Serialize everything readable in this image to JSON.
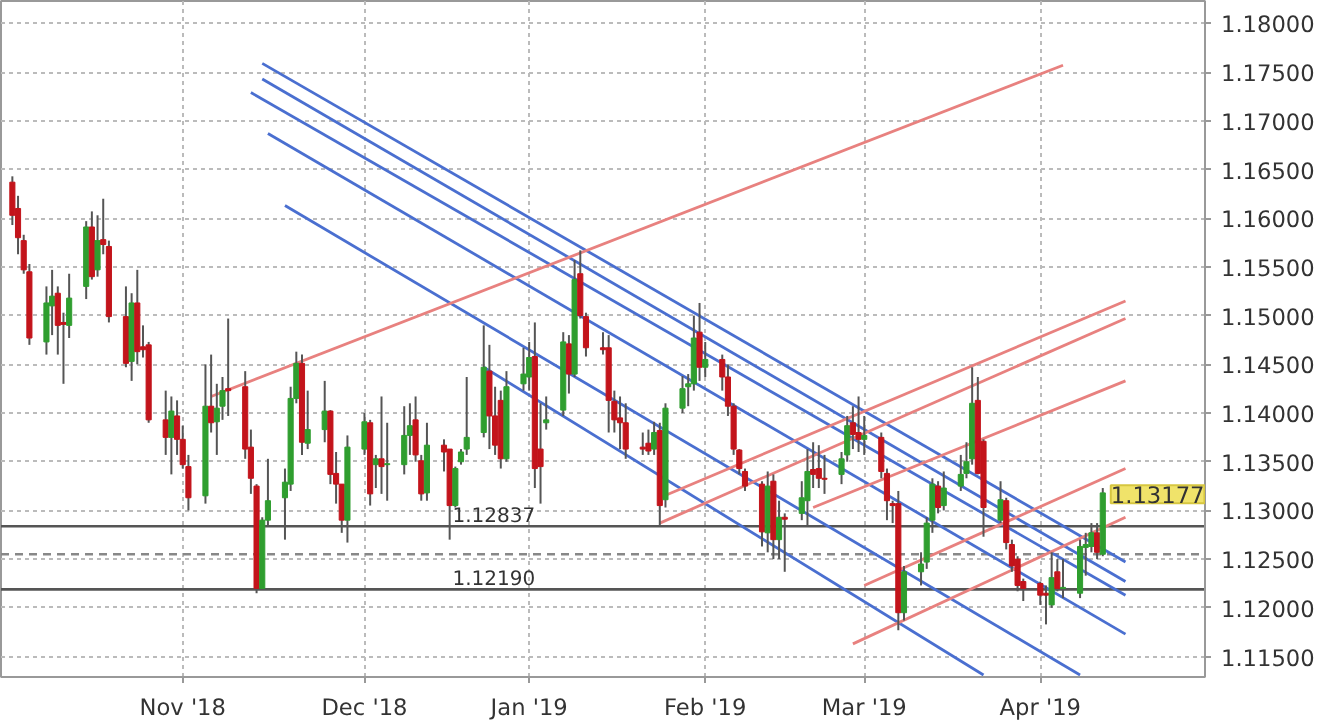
{
  "chart_data": {
    "type": "candlestick",
    "x": [
      "2018-10-02",
      "2018-10-03",
      "2018-10-04",
      "2018-10-05",
      "2018-10-08",
      "2018-10-09",
      "2018-10-10",
      "2018-10-11",
      "2018-10-12",
      "2018-10-15",
      "2018-10-16",
      "2018-10-17",
      "2018-10-18",
      "2018-10-19",
      "2018-10-22",
      "2018-10-23",
      "2018-10-24",
      "2018-10-25",
      "2018-10-26",
      "2018-10-29",
      "2018-10-30",
      "2018-10-31",
      "2018-11-01",
      "2018-11-02",
      "2018-11-05",
      "2018-11-06",
      "2018-11-07",
      "2018-11-08",
      "2018-11-09",
      "2018-11-12",
      "2018-11-13",
      "2018-11-14",
      "2018-11-15",
      "2018-11-16",
      "2018-11-19",
      "2018-11-20",
      "2018-11-21",
      "2018-11-22",
      "2018-11-23",
      "2018-11-26",
      "2018-11-27",
      "2018-11-28",
      "2018-11-29",
      "2018-11-30",
      "2018-12-03",
      "2018-12-04",
      "2018-12-05",
      "2018-12-06",
      "2018-12-07",
      "2018-12-10",
      "2018-12-11",
      "2018-12-12",
      "2018-12-13",
      "2018-12-14",
      "2018-12-17",
      "2018-12-18",
      "2018-12-19",
      "2018-12-20",
      "2018-12-21",
      "2018-12-24",
      "2018-12-25",
      "2018-12-26",
      "2018-12-27",
      "2018-12-28",
      "2018-12-31",
      "2019-01-01",
      "2019-01-02",
      "2019-01-03",
      "2019-01-04",
      "2019-01-07",
      "2019-01-08",
      "2019-01-09",
      "2019-01-10",
      "2019-01-11",
      "2019-01-14",
      "2019-01-15",
      "2019-01-16",
      "2019-01-17",
      "2019-01-18",
      "2019-01-21",
      "2019-01-22",
      "2019-01-23",
      "2019-01-24",
      "2019-01-25",
      "2019-01-28",
      "2019-01-29",
      "2019-01-30",
      "2019-01-31",
      "2019-02-01",
      "2019-02-04",
      "2019-02-05",
      "2019-02-06",
      "2019-02-07",
      "2019-02-08",
      "2019-02-11",
      "2019-02-12",
      "2019-02-13",
      "2019-02-14",
      "2019-02-15",
      "2019-02-18",
      "2019-02-19",
      "2019-02-20",
      "2019-02-21",
      "2019-02-22",
      "2019-02-25",
      "2019-02-26",
      "2019-02-27",
      "2019-02-28",
      "2019-03-01",
      "2019-03-04",
      "2019-03-05",
      "2019-03-06",
      "2019-03-07",
      "2019-03-08",
      "2019-03-11",
      "2019-03-12",
      "2019-03-13",
      "2019-03-14",
      "2019-03-15",
      "2019-03-18",
      "2019-03-19",
      "2019-03-20",
      "2019-03-21",
      "2019-03-22",
      "2019-03-25",
      "2019-03-26",
      "2019-03-27",
      "2019-03-28",
      "2019-03-29",
      "2019-04-01",
      "2019-04-02",
      "2019-04-03",
      "2019-04-04",
      "2019-04-05",
      "2019-04-08",
      "2019-04-09",
      "2019-04-10",
      "2019-04-11",
      "2019-04-12"
    ],
    "ohlc": [
      [
        1.1637,
        1.1643,
        1.1593,
        1.1603
      ],
      [
        1.161,
        1.1623,
        1.1563,
        1.158
      ],
      [
        1.1577,
        1.1583,
        1.1543,
        1.1547
      ],
      [
        1.1545,
        1.1553,
        1.147,
        1.1477
      ],
      [
        1.1473,
        1.153,
        1.146,
        1.1513
      ],
      [
        1.151,
        1.1547,
        1.148,
        1.152
      ],
      [
        1.1523,
        1.153,
        1.146,
        1.149
      ],
      [
        1.1493,
        1.1503,
        1.143,
        1.1491
      ],
      [
        1.149,
        1.1543,
        1.1477,
        1.1518
      ],
      [
        1.153,
        1.1597,
        1.1517,
        1.1591
      ],
      [
        1.1591,
        1.1607,
        1.1537,
        1.154
      ],
      [
        1.1547,
        1.1603,
        1.154,
        1.1577
      ],
      [
        1.1578,
        1.162,
        1.1563,
        1.1573
      ],
      [
        1.1571,
        1.1577,
        1.1493,
        1.1499
      ],
      [
        1.1499,
        1.153,
        1.1447,
        1.1451
      ],
      [
        1.1453,
        1.1523,
        1.1433,
        1.1513
      ],
      [
        1.1513,
        1.1547,
        1.145,
        1.1463
      ],
      [
        1.1468,
        1.149,
        1.1457,
        1.1465
      ],
      [
        1.147,
        1.1473,
        1.139,
        1.1393
      ],
      [
        1.1393,
        1.1423,
        1.1357,
        1.1375
      ],
      [
        1.1375,
        1.1417,
        1.1337,
        1.1402
      ],
      [
        1.1397,
        1.1413,
        1.1357,
        1.1373
      ],
      [
        1.1373,
        1.1387,
        1.1343,
        1.1347
      ],
      [
        1.1345,
        1.1357,
        1.13,
        1.1313
      ],
      [
        1.1315,
        1.145,
        1.1307,
        1.1407
      ],
      [
        1.1407,
        1.146,
        1.138,
        1.139
      ],
      [
        1.1391,
        1.143,
        1.1357,
        1.1405
      ],
      [
        1.1407,
        1.1437,
        1.1393,
        1.1423
      ],
      [
        1.1425,
        1.1497,
        1.1397,
        1.1423
      ],
      [
        1.1427,
        1.1443,
        1.1353,
        1.1363
      ],
      [
        1.1365,
        1.1383,
        1.1317,
        1.1333
      ],
      [
        1.1325,
        1.1327,
        1.1215,
        1.122
      ],
      [
        1.122,
        1.1293,
        1.1219,
        1.129
      ],
      [
        1.129,
        1.1353,
        1.1283,
        1.131
      ],
      [
        1.1313,
        1.1343,
        1.127,
        1.1329
      ],
      [
        1.1327,
        1.1427,
        1.132,
        1.1415
      ],
      [
        1.1415,
        1.1463,
        1.141,
        1.1451
      ],
      [
        1.1451,
        1.146,
        1.1357,
        1.137
      ],
      [
        1.1369,
        1.1423,
        1.1363,
        1.1383
      ],
      [
        1.1383,
        1.1433,
        1.137,
        1.1402
      ],
      [
        1.1402,
        1.1403,
        1.1327,
        1.1337
      ],
      [
        1.1338,
        1.136,
        1.1307,
        1.1327
      ],
      [
        1.1327,
        1.1327,
        1.1277,
        1.129
      ],
      [
        1.129,
        1.1377,
        1.1267,
        1.1365
      ],
      [
        1.1363,
        1.14,
        1.1357,
        1.1391
      ],
      [
        1.139,
        1.1393,
        1.1305,
        1.1317
      ],
      [
        1.1347,
        1.1357,
        1.1323,
        1.1353
      ],
      [
        1.1353,
        1.1417,
        1.1317,
        1.1345
      ],
      [
        1.1347,
        1.139,
        1.131,
        1.1348
      ],
      [
        1.1347,
        1.1407,
        1.1337,
        1.1377
      ],
      [
        1.1377,
        1.141,
        1.1357,
        1.1387
      ],
      [
        1.1393,
        1.1417,
        1.135,
        1.1357
      ],
      [
        1.1351,
        1.1357,
        1.131,
        1.1317
      ],
      [
        1.1318,
        1.139,
        1.131,
        1.1367
      ],
      [
        1.1367,
        1.1373,
        1.134,
        1.136
      ],
      [
        1.1363,
        1.1363,
        1.127,
        1.1305
      ],
      [
        1.1305,
        1.1345,
        1.1303,
        1.1343
      ],
      [
        1.135,
        1.1363,
        1.1347,
        1.136
      ],
      [
        1.1363,
        1.1437,
        1.1357,
        1.1375
      ],
      [
        1.138,
        1.149,
        1.1375,
        1.1447
      ],
      [
        1.1443,
        1.147,
        1.1363,
        1.1397
      ],
      [
        1.1397,
        1.1427,
        1.1357,
        1.1367
      ],
      [
        1.1413,
        1.1423,
        1.1343,
        1.1353
      ],
      [
        1.1353,
        1.1443,
        1.135,
        1.1427
      ],
      [
        1.143,
        1.1467,
        1.1423,
        1.144
      ],
      [
        1.1437,
        1.1473,
        1.1423,
        1.1457
      ],
      [
        1.1458,
        1.1493,
        1.1323,
        1.1343
      ],
      [
        1.1363,
        1.141,
        1.1307,
        1.1345
      ],
      [
        1.139,
        1.1417,
        1.1383,
        1.1393
      ],
      [
        1.1403,
        1.1483,
        1.1397,
        1.1473
      ],
      [
        1.1471,
        1.148,
        1.142,
        1.144
      ],
      [
        1.144,
        1.1557,
        1.1437,
        1.1537
      ],
      [
        1.1543,
        1.1567,
        1.1497,
        1.15
      ],
      [
        1.1499,
        1.1503,
        1.1458,
        1.1467
      ],
      [
        1.1467,
        1.1483,
        1.146,
        1.1465
      ],
      [
        1.1467,
        1.148,
        1.138,
        1.1413
      ],
      [
        1.1412,
        1.1423,
        1.138,
        1.1393
      ],
      [
        1.1395,
        1.1417,
        1.1363,
        1.139
      ],
      [
        1.139,
        1.141,
        1.1353,
        1.1363
      ],
      [
        1.1365,
        1.138,
        1.1357,
        1.1363
      ],
      [
        1.1369,
        1.1383,
        1.1357,
        1.1361
      ],
      [
        1.1363,
        1.1391,
        1.1357,
        1.138
      ],
      [
        1.1382,
        1.139,
        1.1283,
        1.1305
      ],
      [
        1.1311,
        1.141,
        1.1303,
        1.1405
      ],
      [
        1.1405,
        1.1438,
        1.14,
        1.1425
      ],
      [
        1.1427,
        1.144,
        1.1407,
        1.143
      ],
      [
        1.143,
        1.15,
        1.1423,
        1.1477
      ],
      [
        1.1483,
        1.1513,
        1.1433,
        1.1447
      ],
      [
        1.1447,
        1.1473,
        1.1437,
        1.1455
      ],
      [
        1.1455,
        1.146,
        1.1423,
        1.1437
      ],
      [
        1.1437,
        1.145,
        1.1397,
        1.1407
      ],
      [
        1.1407,
        1.141,
        1.1357,
        1.1363
      ],
      [
        1.1362,
        1.1363,
        1.1337,
        1.1343
      ],
      [
        1.134,
        1.1343,
        1.132,
        1.1325
      ],
      [
        1.1327,
        1.133,
        1.1263,
        1.1278
      ],
      [
        1.1277,
        1.134,
        1.1257,
        1.1325
      ],
      [
        1.133,
        1.1337,
        1.125,
        1.127
      ],
      [
        1.127,
        1.131,
        1.125,
        1.1293
      ],
      [
        1.1293,
        1.1297,
        1.1237,
        1.1291
      ],
      [
        1.1297,
        1.133,
        1.129,
        1.1313
      ],
      [
        1.131,
        1.1363,
        1.1283,
        1.134
      ],
      [
        1.1342,
        1.137,
        1.1323,
        1.1337
      ],
      [
        1.1343,
        1.1367,
        1.1323,
        1.1333
      ],
      [
        1.1333,
        1.1357,
        1.1317,
        1.1332
      ],
      [
        1.1337,
        1.136,
        1.1327,
        1.1353
      ],
      [
        1.1357,
        1.1397,
        1.135,
        1.1387
      ],
      [
        1.139,
        1.1407,
        1.1363,
        1.1378
      ],
      [
        1.138,
        1.1417,
        1.136,
        1.1373
      ],
      [
        1.1373,
        1.1397,
        1.1357,
        1.1377
      ],
      [
        1.1375,
        1.138,
        1.1333,
        1.134
      ],
      [
        1.1338,
        1.1343,
        1.129,
        1.131
      ],
      [
        1.1307,
        1.131,
        1.1287,
        1.1305
      ],
      [
        1.1307,
        1.132,
        1.1177,
        1.1195
      ],
      [
        1.1195,
        1.1243,
        1.1187,
        1.1237
      ],
      [
        1.1237,
        1.1257,
        1.1223,
        1.1245
      ],
      [
        1.1247,
        1.1293,
        1.124,
        1.1287
      ],
      [
        1.129,
        1.1333,
        1.1277,
        1.1327
      ],
      [
        1.1325,
        1.133,
        1.1297,
        1.1303
      ],
      [
        1.1305,
        1.134,
        1.13,
        1.1323
      ],
      [
        1.1325,
        1.1357,
        1.132,
        1.1337
      ],
      [
        1.1338,
        1.137,
        1.1333,
        1.135
      ],
      [
        1.1353,
        1.1447,
        1.1347,
        1.141
      ],
      [
        1.1413,
        1.1437,
        1.1337,
        1.1338
      ],
      [
        1.1371,
        1.1373,
        1.1273,
        1.1303
      ],
      [
        1.129,
        1.133,
        1.1287,
        1.1311
      ],
      [
        1.131,
        1.1313,
        1.126,
        1.1267
      ],
      [
        1.1265,
        1.127,
        1.1237,
        1.1243
      ],
      [
        1.125,
        1.1253,
        1.1217,
        1.1223
      ],
      [
        1.1227,
        1.123,
        1.1207,
        1.122
      ],
      [
        1.1225,
        1.1227,
        1.1203,
        1.1213
      ],
      [
        1.1215,
        1.1223,
        1.1183,
        1.1213
      ],
      [
        1.1203,
        1.1257,
        1.12,
        1.1231
      ],
      [
        1.1237,
        1.125,
        1.1217,
        1.122
      ],
      [
        1.122,
        1.125,
        1.121,
        1.1221
      ],
      [
        1.1215,
        1.127,
        1.121,
        1.1263
      ],
      [
        1.1262,
        1.1277,
        1.1233,
        1.1265
      ],
      [
        1.1263,
        1.1287,
        1.1257,
        1.1277
      ],
      [
        1.1277,
        1.1287,
        1.125,
        1.1257
      ],
      [
        1.1255,
        1.1323,
        1.1253,
        1.1318
      ]
    ],
    "colors": [
      "#c3141b",
      "#c3141b",
      "#c3141b",
      "#c3141b",
      "#2f9e2f",
      "#2f9e2f",
      "#c3141b",
      "#c3141b",
      "#2f9e2f",
      "#2f9e2f",
      "#c3141b",
      "#2f9e2f",
      "#c3141b",
      "#c3141b",
      "#c3141b",
      "#2f9e2f",
      "#c3141b",
      "#c3141b",
      "#c3141b",
      "#c3141b",
      "#2f9e2f",
      "#c3141b",
      "#c3141b",
      "#c3141b",
      "#2f9e2f",
      "#c3141b",
      "#2f9e2f",
      "#2f9e2f",
      "#c3141b",
      "#c3141b",
      "#c3141b",
      "#c3141b",
      "#2f9e2f",
      "#2f9e2f",
      "#2f9e2f",
      "#2f9e2f",
      "#2f9e2f",
      "#c3141b",
      "#2f9e2f",
      "#2f9e2f",
      "#c3141b",
      "#c3141b",
      "#c3141b",
      "#2f9e2f",
      "#2f9e2f",
      "#c3141b",
      "#2f9e2f",
      "#c3141b",
      "#2f9e2f",
      "#2f9e2f",
      "#2f9e2f",
      "#c3141b",
      "#c3141b",
      "#2f9e2f",
      "#c3141b",
      "#c3141b",
      "#2f9e2f",
      "#2f9e2f",
      "#2f9e2f",
      "#2f9e2f",
      "#c3141b",
      "#c3141b",
      "#c3141b",
      "#2f9e2f",
      "#2f9e2f",
      "#2f9e2f",
      "#c3141b",
      "#c3141b",
      "#2f9e2f",
      "#2f9e2f",
      "#c3141b",
      "#2f9e2f",
      "#c3141b",
      "#c3141b",
      "#c3141b",
      "#c3141b",
      "#c3141b",
      "#c3141b",
      "#c3141b",
      "#c3141b",
      "#c3141b",
      "#2f9e2f",
      "#c3141b",
      "#2f9e2f",
      "#2f9e2f",
      "#2f9e2f",
      "#2f9e2f",
      "#c3141b",
      "#2f9e2f",
      "#c3141b",
      "#c3141b",
      "#c3141b",
      "#c3141b",
      "#c3141b",
      "#c3141b",
      "#2f9e2f",
      "#c3141b",
      "#2f9e2f",
      "#c3141b",
      "#2f9e2f",
      "#2f9e2f",
      "#c3141b",
      "#c3141b",
      "#c3141b",
      "#2f9e2f",
      "#2f9e2f",
      "#c3141b",
      "#c3141b",
      "#2f9e2f",
      "#c3141b",
      "#c3141b",
      "#c3141b",
      "#c3141b",
      "#2f9e2f",
      "#2f9e2f",
      "#2f9e2f",
      "#2f9e2f",
      "#c3141b",
      "#2f9e2f",
      "#2f9e2f",
      "#2f9e2f",
      "#2f9e2f",
      "#c3141b",
      "#c3141b",
      "#2f9e2f",
      "#c3141b",
      "#c3141b",
      "#c3141b",
      "#c3141b",
      "#c3141b",
      "#c3141b",
      "#2f9e2f",
      "#c3141b",
      "#2f9e2f",
      "#2f9e2f",
      "#2f9e2f",
      "#2f9e2f",
      "#c3141b",
      "#2f9e2f"
    ],
    "series": [
      {
        "type": "line",
        "color": "#4a6fd0",
        "x": [
          "2018-11-15",
          "2019-04-16"
        ],
        "values": [
          1.1759,
          1.1247
        ]
      },
      {
        "type": "line",
        "color": "#4a6fd0",
        "x": [
          "2018-11-15",
          "2019-04-16"
        ],
        "values": [
          1.1743,
          1.1227
        ]
      },
      {
        "type": "line",
        "color": "#4a6fd0",
        "x": [
          "2018-11-13",
          "2019-04-16"
        ],
        "values": [
          1.1729,
          1.1213
        ]
      },
      {
        "type": "line",
        "color": "#4a6fd0",
        "x": [
          "2018-11-16",
          "2019-04-16"
        ],
        "values": [
          1.1687,
          1.1173
        ]
      },
      {
        "type": "line",
        "color": "#4a6fd0",
        "x": [
          "2018-11-19",
          "2019-04-08"
        ],
        "values": [
          1.1613,
          1.1131
        ]
      },
      {
        "type": "line",
        "color": "#4a6fd0",
        "x": [
          "2018-12-24",
          "2019-03-22"
        ],
        "values": [
          1.1447,
          1.1131
        ]
      },
      {
        "type": "line",
        "color": "#e8817f",
        "x": [
          "2018-11-06",
          "2019-04-05"
        ],
        "values": [
          1.1417,
          1.1757
        ]
      },
      {
        "type": "line",
        "color": "#e8817f",
        "x": [
          "2019-01-24",
          "2019-04-16"
        ],
        "values": [
          1.1313,
          1.1515
        ]
      },
      {
        "type": "line",
        "color": "#e8817f",
        "x": [
          "2019-01-24",
          "2019-04-16"
        ],
        "values": [
          1.1287,
          1.1497
        ]
      },
      {
        "type": "line",
        "color": "#e8817f",
        "x": [
          "2019-02-20",
          "2019-04-16"
        ],
        "values": [
          1.1303,
          1.1433
        ]
      },
      {
        "type": "line",
        "color": "#e8817f",
        "x": [
          "2019-03-01",
          "2019-04-16"
        ],
        "values": [
          1.1223,
          1.1343
        ]
      },
      {
        "type": "line",
        "color": "#e8817f",
        "x": [
          "2019-02-27",
          "2019-04-16"
        ],
        "values": [
          1.1163,
          1.1293
        ]
      }
    ],
    "ref_lines": [
      {
        "axis": "y",
        "value": 1.12837,
        "label": "1.12837",
        "color": "#555555",
        "line_style": "solid"
      },
      {
        "axis": "y",
        "value": 1.1219,
        "label": "1.12190",
        "color": "#555555",
        "line_style": "solid"
      },
      {
        "axis": "y",
        "value": 1.1255,
        "color": "#888888",
        "line_style": "dashed"
      }
    ],
    "annotations": [
      {
        "text": "1.13177",
        "x": "2019-04-12",
        "y": 1.13177
      }
    ],
    "xlim": [
      "2018-09-30",
      "2019-04-30"
    ],
    "ylim": [
      1.1129,
      1.1823
    ],
    "xticks": [
      {
        "value": "2018-11-01",
        "label": "Nov '18"
      },
      {
        "value": "2018-12-03",
        "label": "Dec '18"
      },
      {
        "value": "2019-01-01",
        "label": "Jan '19"
      },
      {
        "value": "2019-02-01",
        "label": "Feb '19"
      },
      {
        "value": "2019-03-01",
        "label": "Mar '19"
      },
      {
        "value": "2019-04-01",
        "label": "Apr '19"
      }
    ],
    "yticks": [
      {
        "value": 1.115,
        "label": "1.11500"
      },
      {
        "value": 1.12,
        "label": "1.12000"
      },
      {
        "value": 1.125,
        "label": "1.12500"
      },
      {
        "value": 1.13,
        "label": "1.13000"
      },
      {
        "value": 1.135,
        "label": "1.13500"
      },
      {
        "value": 1.14,
        "label": "1.14000"
      },
      {
        "value": 1.145,
        "label": "1.14500"
      },
      {
        "value": 1.15,
        "label": "1.15000"
      },
      {
        "value": 1.155,
        "label": "1.15500"
      },
      {
        "value": 1.16,
        "label": "1.16000"
      },
      {
        "value": 1.165,
        "label": "1.16500"
      },
      {
        "value": 1.17,
        "label": "1.17000"
      },
      {
        "value": 1.175,
        "label": "1.17500"
      },
      {
        "value": 1.18,
        "label": "1.18000"
      }
    ],
    "grid": true
  }
}
